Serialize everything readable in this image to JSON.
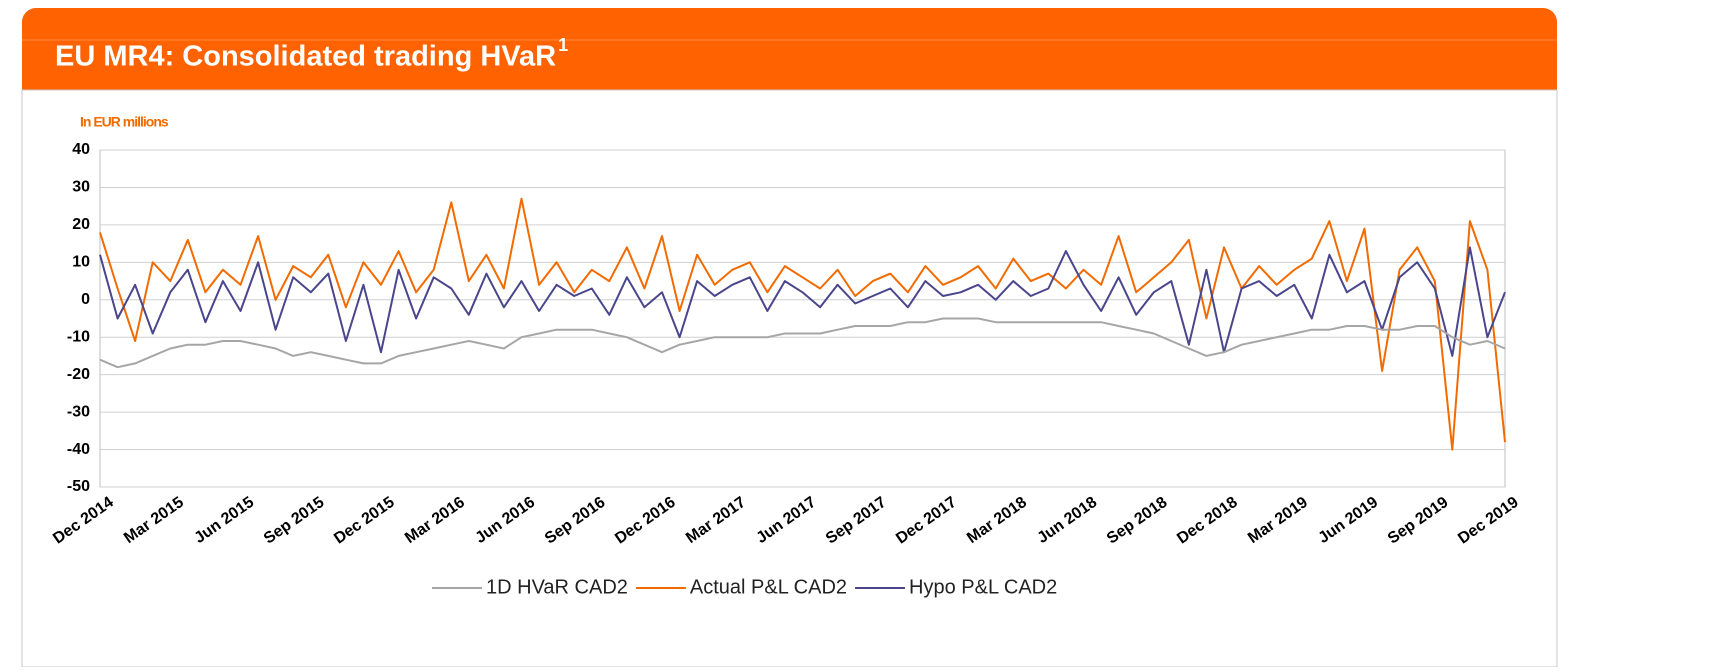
{
  "chart_data": {
    "type": "line",
    "title": "EU MR4: Consolidated trading HVaR",
    "title_note": "1",
    "y_label": "In EUR millions",
    "categories": [
      "Dec 2014",
      null,
      null,
      null,
      "Mar 2015",
      null,
      null,
      null,
      "Jun 2015",
      null,
      null,
      null,
      "Sep 2015",
      null,
      null,
      null,
      "Dec 2015",
      null,
      null,
      null,
      "Mar 2016",
      null,
      null,
      null,
      "Jun 2016",
      null,
      null,
      null,
      "Sep 2016",
      null,
      null,
      null,
      "Dec 2016",
      null,
      null,
      null,
      "Mar 2017",
      null,
      null,
      null,
      "Jun 2017",
      null,
      null,
      null,
      "Sep 2017",
      null,
      null,
      null,
      "Dec 2017",
      null,
      null,
      null,
      "Mar 2018",
      null,
      null,
      null,
      "Jun 2018",
      null,
      null,
      null,
      "Sep 2018",
      null,
      null,
      null,
      "Dec 2018",
      null,
      null,
      null,
      "Mar 2019",
      null,
      null,
      null,
      "Jun 2019",
      null,
      null,
      null,
      "Sep 2019",
      null,
      null,
      null,
      "Dec 2019"
    ],
    "series": [
      {
        "name": "1D HVaR CAD2",
        "color": "#a6a6a6",
        "values": [
          -16,
          -18,
          -17,
          -15,
          -13,
          -12,
          -12,
          -11,
          -11,
          -12,
          -13,
          -15,
          -14,
          -15,
          -16,
          -17,
          -17,
          -15,
          -14,
          -13,
          -12,
          -11,
          -12,
          -13,
          -10,
          -9,
          -8,
          -8,
          -8,
          -9,
          -10,
          -12,
          -14,
          -12,
          -11,
          -10,
          -10,
          -10,
          -10,
          -9,
          -9,
          -9,
          -8,
          -7,
          -7,
          -7,
          -6,
          -6,
          -5,
          -5,
          -5,
          -6,
          -6,
          -6,
          -6,
          -6,
          -6,
          -6,
          -7,
          -8,
          -9,
          -11,
          -13,
          -15,
          -14,
          -12,
          -11,
          -10,
          -9,
          -8,
          -8,
          -7,
          -7,
          -8,
          -8,
          -7,
          -7,
          -10,
          -12,
          -11,
          -13
        ]
      },
      {
        "name": "Actual P&L CAD2",
        "color": "#f26b00",
        "values": [
          18,
          3,
          -11,
          10,
          5,
          16,
          2,
          8,
          4,
          17,
          0,
          9,
          6,
          12,
          -2,
          10,
          4,
          13,
          2,
          8,
          26,
          5,
          12,
          3,
          27,
          4,
          10,
          2,
          8,
          5,
          14,
          3,
          17,
          -3,
          12,
          4,
          8,
          10,
          2,
          9,
          6,
          3,
          8,
          1,
          5,
          7,
          2,
          9,
          4,
          6,
          9,
          3,
          11,
          5,
          7,
          3,
          8,
          4,
          17,
          2,
          6,
          10,
          16,
          -5,
          14,
          3,
          9,
          4,
          8,
          11,
          21,
          5,
          19,
          -19,
          8,
          14,
          5,
          -40,
          21,
          8,
          -38
        ]
      },
      {
        "name": "Hypo P&L CAD2",
        "color": "#4a468c",
        "values": [
          12,
          -5,
          4,
          -9,
          2,
          8,
          -6,
          5,
          -3,
          10,
          -8,
          6,
          2,
          7,
          -11,
          4,
          -14,
          8,
          -5,
          6,
          3,
          -4,
          7,
          -2,
          5,
          -3,
          4,
          1,
          3,
          -4,
          6,
          -2,
          2,
          -10,
          5,
          1,
          4,
          6,
          -3,
          5,
          2,
          -2,
          4,
          -1,
          1,
          3,
          -2,
          5,
          1,
          2,
          4,
          0,
          5,
          1,
          3,
          13,
          4,
          -3,
          6,
          -4,
          2,
          5,
          -12,
          8,
          -14,
          3,
          5,
          1,
          4,
          -5,
          12,
          2,
          5,
          -8,
          6,
          10,
          3,
          -15,
          14,
          -10,
          2
        ]
      }
    ],
    "draw_order": [
      1,
      2,
      0
    ],
    "ylim": [
      -50,
      40
    ],
    "yticks": [
      -50,
      -40,
      -30,
      -20,
      -10,
      0,
      10,
      20,
      30,
      40
    ],
    "grid": true
  }
}
